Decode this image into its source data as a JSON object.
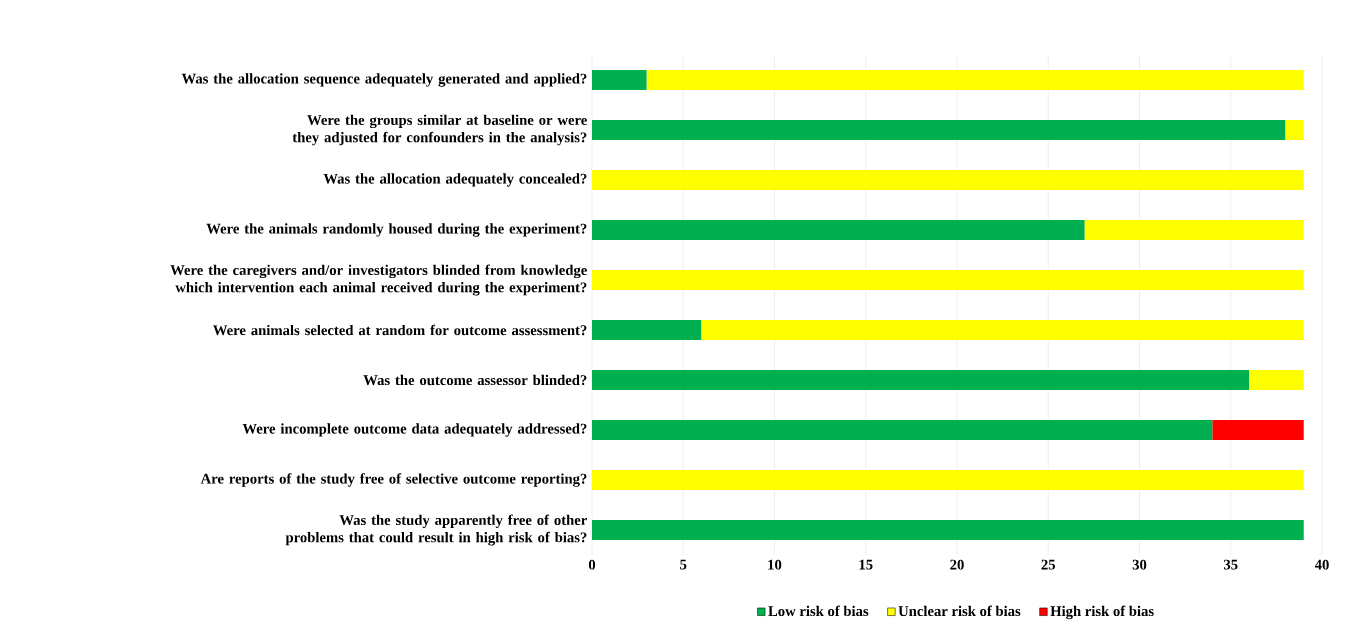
{
  "chart_data": {
    "type": "bar",
    "orientation": "horizontal",
    "stacked": true,
    "categories": [
      "Was the allocation sequence adequately generated and applied?",
      "Were the groups similar at baseline or were they adjusted for confounders in the analysis?",
      "Was the allocation adequately concealed?",
      "Were the animals randomly housed during the experiment?",
      "Were the caregivers and/or investigators blinded from knowledge which intervention each animal received during the experiment?",
      "Were animals selected at random for outcome assessment?",
      "Was the outcome assessor blinded?",
      "Were incomplete outcome data adequately addressed?",
      "Are reports of the study free of selective outcome reporting?",
      "Was the study apparently free of other problems that could result in high risk of bias?"
    ],
    "series": [
      {
        "name": "Low risk of bias",
        "color": "#00b050",
        "values": [
          3,
          38,
          null,
          27,
          null,
          6,
          36,
          34,
          null,
          39
        ]
      },
      {
        "name": "Unclear risk of bias",
        "color": "#ffff00",
        "values": [
          36,
          1,
          39,
          12,
          39,
          33,
          3,
          null,
          39,
          null
        ]
      },
      {
        "name": "High risk of bias",
        "color": "#ff0000",
        "values": [
          null,
          null,
          null,
          null,
          null,
          null,
          null,
          5,
          null,
          null
        ]
      }
    ],
    "xlim": [
      0,
      40
    ],
    "xticks": [
      0,
      5,
      10,
      15,
      20,
      25,
      30,
      35,
      40
    ],
    "grid": "x",
    "legend": "bottom"
  }
}
